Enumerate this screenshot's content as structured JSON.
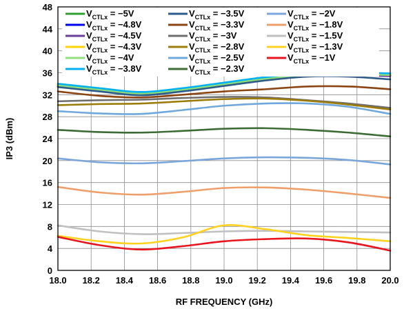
{
  "chart_data": {
    "type": "line",
    "title": "",
    "xlabel": "RF FREQUENCY (GHz)",
    "ylabel": "IP3 (dBm)",
    "xlim": [
      18.0,
      20.0
    ],
    "ylim": [
      0,
      48
    ],
    "xticks": [
      "18.0",
      "18.2",
      "18.4",
      "18.6",
      "18.8",
      "19.0",
      "19.2",
      "19.4",
      "19.6",
      "19.8",
      "20.0"
    ],
    "yticks": [
      "0",
      "4",
      "8",
      "12",
      "16",
      "20",
      "24",
      "28",
      "32",
      "36",
      "40",
      "44",
      "48"
    ],
    "grid": true,
    "legend_position": "top",
    "legend_label_prefix": "V",
    "legend_label_sub": "CTLx",
    "x": [
      18.0,
      18.25,
      18.5,
      18.75,
      19.0,
      19.25,
      19.5,
      19.75,
      20.0
    ],
    "series": [
      {
        "name": " = −5V",
        "color": "#2ca02c",
        "values": [
          33.8,
          33.0,
          32.3,
          33.0,
          34.0,
          35.0,
          35.7,
          35.8,
          35.7
        ]
      },
      {
        "name": " = −4.8V",
        "color": "#0000ee",
        "values": [
          33.6,
          32.8,
          32.1,
          32.8,
          33.8,
          34.8,
          35.5,
          35.6,
          35.5
        ]
      },
      {
        "name": " = −4.5V",
        "color": "#6a3d9a",
        "values": [
          33.5,
          32.7,
          32.0,
          32.7,
          33.7,
          34.7,
          35.4,
          35.5,
          35.4
        ]
      },
      {
        "name": " = −4.3V",
        "color": "#ffd400",
        "values": [
          33.9,
          33.1,
          32.4,
          33.1,
          34.1,
          35.1,
          35.8,
          35.9,
          35.8
        ]
      },
      {
        "name": " = −4V",
        "color": "#8fe07a",
        "values": [
          33.7,
          32.9,
          32.2,
          32.9,
          33.9,
          34.9,
          35.6,
          35.7,
          35.6
        ]
      },
      {
        "name": " = −3.8V",
        "color": "#00b0f0",
        "values": [
          34.0,
          33.2,
          32.5,
          33.2,
          34.2,
          35.2,
          35.9,
          36.0,
          35.9
        ]
      },
      {
        "name": " = −3.5V",
        "color": "#2e5c8a",
        "values": [
          33.4,
          32.6,
          31.9,
          32.6,
          33.6,
          34.6,
          35.3,
          35.3,
          34.8
        ]
      },
      {
        "name": " = −3.3V",
        "color": "#8b4513",
        "values": [
          32.6,
          31.8,
          31.5,
          32.0,
          32.6,
          33.0,
          33.5,
          33.5,
          33.0
        ]
      },
      {
        "name": " = −3V",
        "color": "#6e6e6e",
        "values": [
          30.8,
          31.0,
          31.1,
          31.4,
          31.6,
          31.5,
          31.0,
          30.4,
          29.6
        ]
      },
      {
        "name": " = −2.8V",
        "color": "#9c7d0c",
        "values": [
          30.1,
          30.3,
          30.4,
          30.8,
          31.2,
          31.3,
          30.9,
          30.2,
          29.3
        ]
      },
      {
        "name": " = −2.5V",
        "color": "#6fa8dc",
        "values": [
          29.0,
          28.6,
          28.5,
          29.2,
          30.0,
          30.4,
          30.4,
          29.8,
          28.5
        ]
      },
      {
        "name": " = −2.3V",
        "color": "#3d6b35",
        "values": [
          25.6,
          25.2,
          25.1,
          25.4,
          25.8,
          25.9,
          25.6,
          25.1,
          24.4
        ]
      },
      {
        "name": " = −2V",
        "color": "#7aa6dc",
        "values": [
          20.4,
          19.7,
          19.5,
          19.9,
          20.4,
          20.6,
          20.5,
          20.1,
          19.3
        ]
      },
      {
        "name": " = −1.8V",
        "color": "#ef9f6a",
        "values": [
          15.2,
          14.2,
          13.8,
          14.3,
          15.0,
          15.1,
          14.7,
          14.0,
          13.2
        ]
      },
      {
        "name": " = −1.5V",
        "color": "#c0c0c0",
        "values": [
          8.2,
          7.1,
          6.6,
          6.8,
          7.1,
          7.2,
          7.1,
          7.0,
          6.9
        ]
      },
      {
        "name": " = −1.3V",
        "color": "#ffd21f",
        "values": [
          6.3,
          5.3,
          4.9,
          6.0,
          8.2,
          7.5,
          6.4,
          5.9,
          5.3
        ]
      },
      {
        "name": " = −1V",
        "color": "#e8141e",
        "values": [
          6.1,
          4.6,
          3.8,
          4.4,
          5.3,
          5.7,
          5.8,
          5.1,
          3.6
        ]
      }
    ]
  }
}
